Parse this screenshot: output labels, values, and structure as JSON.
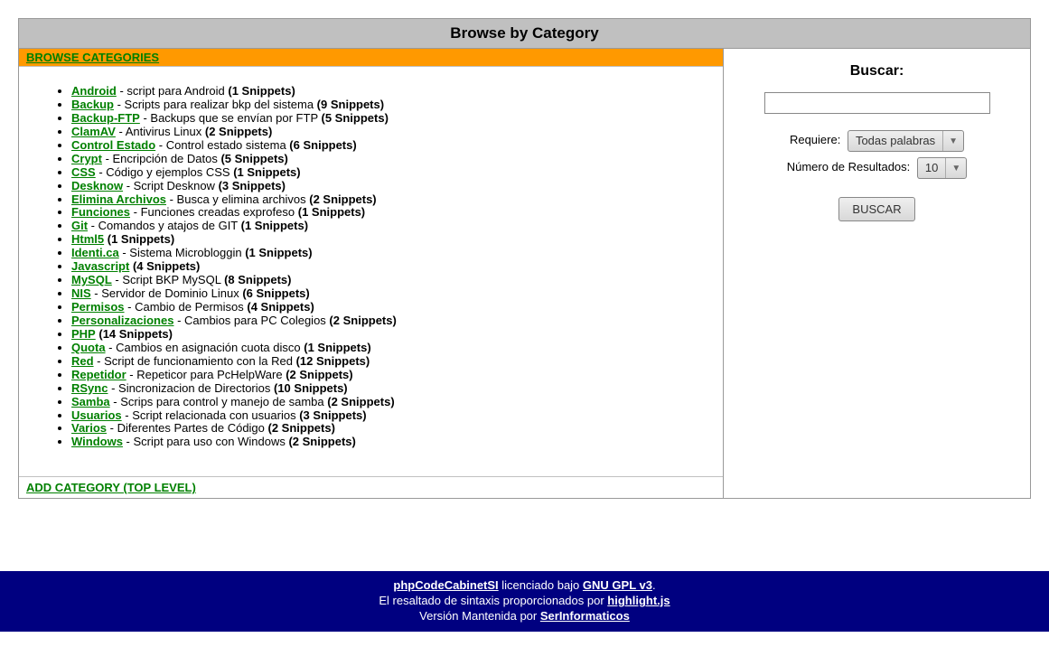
{
  "title_bar": "Browse by Category",
  "browse_header": "BROWSE CATEGORIES",
  "add_category": "ADD CATEGORY (TOP LEVEL)",
  "categories": [
    {
      "name": "Android",
      "desc": "script para Android",
      "count": "(1 Snippets)"
    },
    {
      "name": "Backup",
      "desc": "Scripts para realizar bkp del sistema",
      "count": "(9 Snippets)"
    },
    {
      "name": "Backup-FTP",
      "desc": "Backups que se envían por FTP",
      "count": "(5 Snippets)"
    },
    {
      "name": "ClamAV",
      "desc": "Antivirus Linux",
      "count": "(2 Snippets)"
    },
    {
      "name": "Control Estado",
      "desc": "Control estado sistema",
      "count": "(6 Snippets)"
    },
    {
      "name": "Crypt",
      "desc": "Encripción de Datos",
      "count": "(5 Snippets)"
    },
    {
      "name": "CSS",
      "desc": "Código y ejemplos CSS",
      "count": "(1 Snippets)"
    },
    {
      "name": "Desknow",
      "desc": "Script Desknow",
      "count": "(3 Snippets)"
    },
    {
      "name": "Elimina Archivos",
      "desc": "Busca y elimina archivos",
      "count": "(2 Snippets)"
    },
    {
      "name": "Funciones",
      "desc": "Funciones creadas exprofeso",
      "count": "(1 Snippets)"
    },
    {
      "name": "Git",
      "desc": "Comandos y atajos de GIT",
      "count": "(1 Snippets)"
    },
    {
      "name": "Html5",
      "desc": "",
      "count": "(1 Snippets)"
    },
    {
      "name": "Identi.ca",
      "desc": "Sistema Microbloggin",
      "count": "(1 Snippets)"
    },
    {
      "name": "Javascript",
      "desc": "",
      "count": "(4 Snippets)"
    },
    {
      "name": "MySQL",
      "desc": "Script BKP MySQL",
      "count": "(8 Snippets)"
    },
    {
      "name": "NIS",
      "desc": "Servidor de Dominio Linux",
      "count": "(6 Snippets)"
    },
    {
      "name": "Permisos",
      "desc": "Cambio de Permisos",
      "count": "(4 Snippets)"
    },
    {
      "name": "Personalizaciones",
      "desc": "Cambios para PC Colegios",
      "count": "(2 Snippets)"
    },
    {
      "name": "PHP",
      "desc": "",
      "count": "(14 Snippets)"
    },
    {
      "name": "Quota",
      "desc": "Cambios en asignación cuota disco",
      "count": "(1 Snippets)"
    },
    {
      "name": "Red",
      "desc": "Script de funcionamiento con la Red",
      "count": "(12 Snippets)"
    },
    {
      "name": "Repetidor",
      "desc": "Repeticor para PcHelpWare",
      "count": "(2 Snippets)"
    },
    {
      "name": "RSync",
      "desc": "Sincronizacion de Directorios",
      "count": "(10 Snippets)"
    },
    {
      "name": "Samba",
      "desc": "Scrips para control y manejo de samba",
      "count": "(2 Snippets)"
    },
    {
      "name": "Usuarios",
      "desc": "Script relacionada con usuarios",
      "count": "(3 Snippets)"
    },
    {
      "name": "Varios",
      "desc": "Diferentes Partes de Código",
      "count": "(2 Snippets)"
    },
    {
      "name": "Windows",
      "desc": "Script para uso con Windows",
      "count": "(2 Snippets)"
    }
  ],
  "search": {
    "title": "Buscar:",
    "requires_label": "Requiere:",
    "requires_value": "Todas palabras",
    "results_label": "Número de Resultados:",
    "results_value": "10",
    "button": "BUSCAR"
  },
  "footer": {
    "l1a": "phpCodeCabinetSI",
    "l1b": " licenciado bajo ",
    "l1c": "GNU GPL v3",
    "l1d": ".",
    "l2a": "El resaltado de sintaxis proporcionados por ",
    "l2b": "highlight.js",
    "l3a": "Versión Mantenida por ",
    "l3b": "SerInformaticos"
  }
}
